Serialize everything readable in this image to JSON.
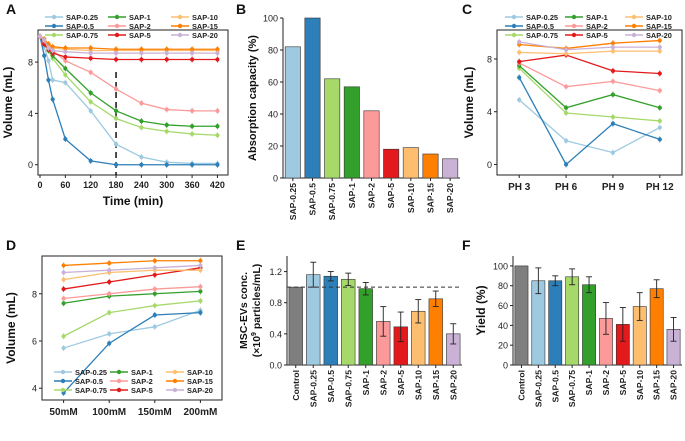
{
  "figure": {
    "series_styles": [
      {
        "name": "SAP-0.25",
        "color": "#9ecae1"
      },
      {
        "name": "SAP-0.5",
        "color": "#2c7fb8"
      },
      {
        "name": "SAP-0.75",
        "color": "#a6d96a"
      },
      {
        "name": "SAP-1",
        "color": "#33a02c"
      },
      {
        "name": "SAP-2",
        "color": "#fb9a99"
      },
      {
        "name": "SAP-5",
        "color": "#e31a1c"
      },
      {
        "name": "SAP-10",
        "color": "#fdbf6f"
      },
      {
        "name": "SAP-15",
        "color": "#ff7f00"
      },
      {
        "name": "SAP-20",
        "color": "#cab2d6"
      }
    ],
    "control_color": "#7f7f7f"
  },
  "chart_data": [
    {
      "panel": "A",
      "type": "line",
      "xlabel": "Time (min)",
      "ylabel": "Volume (mL)",
      "x": [
        0,
        10,
        20,
        30,
        60,
        120,
        180,
        240,
        300,
        360,
        420
      ],
      "xticks": [
        0,
        60,
        120,
        180,
        240,
        300,
        360,
        420
      ],
      "xlim": [
        0,
        445
      ],
      "ylim": [
        -0.8,
        10.5
      ],
      "yticks": [
        0,
        4,
        8
      ],
      "vline": 180,
      "series": [
        {
          "name": "SAP-0.25",
          "values": [
            10,
            9.2,
            8.1,
            6.6,
            6.4,
            4.2,
            1.6,
            0.6,
            0.2,
            0.1,
            0.1
          ]
        },
        {
          "name": "SAP-0.5",
          "values": [
            10,
            8.5,
            6.6,
            5.1,
            2.0,
            0.3,
            0.0,
            0.0,
            0.0,
            0.0,
            0.0
          ]
        },
        {
          "name": "SAP-0.75",
          "values": [
            10,
            9.4,
            8.9,
            8.3,
            7.0,
            4.9,
            3.6,
            2.9,
            2.6,
            2.4,
            2.3
          ]
        },
        {
          "name": "SAP-1",
          "values": [
            10,
            9.4,
            8.9,
            8.5,
            7.5,
            5.6,
            4.2,
            3.4,
            3.1,
            3.0,
            3.0
          ]
        },
        {
          "name": "SAP-2",
          "values": [
            10,
            9.6,
            9.3,
            8.9,
            8.1,
            7.2,
            5.9,
            4.8,
            4.3,
            4.2,
            4.2
          ]
        },
        {
          "name": "SAP-5",
          "values": [
            10,
            9.4,
            9.0,
            8.7,
            8.4,
            8.3,
            8.2,
            8.2,
            8.2,
            8.2,
            8.2
          ]
        },
        {
          "name": "SAP-10",
          "values": [
            10,
            9.7,
            9.3,
            9.1,
            9.0,
            8.9,
            8.9,
            8.9,
            8.9,
            8.9,
            8.9
          ]
        },
        {
          "name": "SAP-15",
          "values": [
            10,
            9.8,
            9.4,
            9.2,
            9.1,
            9.1,
            9.0,
            9.0,
            9.0,
            9.0,
            9.0
          ]
        },
        {
          "name": "SAP-20",
          "values": [
            10,
            9.7,
            9.1,
            8.9,
            8.8,
            8.7,
            8.7,
            8.7,
            8.7,
            8.7,
            8.7
          ]
        }
      ]
    },
    {
      "panel": "B",
      "type": "bar",
      "ylabel": "Absorption capacity (%)",
      "categories": [
        "SAP-0.25",
        "SAP-0.5",
        "SAP-0.75",
        "SAP-1",
        "SAP-2",
        "SAP-5",
        "SAP-10",
        "SAP-15",
        "SAP-20"
      ],
      "values": [
        82,
        100,
        62,
        57,
        42,
        18,
        19,
        15,
        12
      ],
      "ylim": [
        0,
        100
      ],
      "yticks": [
        0,
        20,
        40,
        60,
        80,
        100
      ]
    },
    {
      "panel": "C",
      "type": "line",
      "ylabel": "Volume (mL)",
      "categories": [
        "PH 3",
        "PH 6",
        "PH 9",
        "PH 12"
      ],
      "ylim": [
        -0.8,
        10.2
      ],
      "yticks": [
        0,
        4,
        8
      ],
      "series": [
        {
          "name": "SAP-0.25",
          "values": [
            4.9,
            1.8,
            0.9,
            2.8
          ]
        },
        {
          "name": "SAP-0.5",
          "values": [
            6.6,
            0.0,
            3.1,
            1.9
          ]
        },
        {
          "name": "SAP-0.75",
          "values": [
            7.3,
            3.9,
            3.6,
            3.3
          ]
        },
        {
          "name": "SAP-1",
          "values": [
            7.5,
            4.3,
            5.3,
            4.3
          ]
        },
        {
          "name": "SAP-2",
          "values": [
            7.7,
            5.9,
            6.3,
            5.6
          ]
        },
        {
          "name": "SAP-5",
          "values": [
            7.8,
            8.3,
            7.1,
            6.9
          ]
        },
        {
          "name": "SAP-10",
          "values": [
            8.5,
            8.4,
            8.6,
            8.6
          ]
        },
        {
          "name": "SAP-15",
          "values": [
            9.1,
            8.8,
            9.2,
            9.4
          ]
        },
        {
          "name": "SAP-20",
          "values": [
            9.3,
            8.7,
            8.9,
            8.9
          ]
        }
      ]
    },
    {
      "panel": "D",
      "type": "line",
      "ylabel": "Volume (mL)",
      "categories": [
        "50mM",
        "100mM",
        "150mM",
        "200mM"
      ],
      "ylim": [
        3.5,
        9.6
      ],
      "yticks": [
        4,
        6,
        8
      ],
      "series": [
        {
          "name": "SAP-0.25",
          "values": [
            5.7,
            6.3,
            6.6,
            7.3
          ]
        },
        {
          "name": "SAP-0.5",
          "values": [
            3.8,
            5.9,
            7.1,
            7.2
          ]
        },
        {
          "name": "SAP-0.75",
          "values": [
            6.2,
            7.2,
            7.5,
            7.7
          ]
        },
        {
          "name": "SAP-1",
          "values": [
            7.6,
            7.9,
            8.0,
            8.1
          ]
        },
        {
          "name": "SAP-2",
          "values": [
            7.8,
            8.0,
            8.2,
            8.3
          ]
        },
        {
          "name": "SAP-5",
          "values": [
            8.2,
            8.5,
            8.8,
            9.1
          ]
        },
        {
          "name": "SAP-10",
          "values": [
            8.6,
            8.9,
            9.0,
            9.0
          ]
        },
        {
          "name": "SAP-15",
          "values": [
            9.2,
            9.3,
            9.4,
            9.4
          ]
        },
        {
          "name": "SAP-20",
          "values": [
            8.9,
            9.0,
            9.1,
            9.2
          ]
        }
      ]
    },
    {
      "panel": "E",
      "type": "bar",
      "ylabel_line1": "MSC-EVs conc.",
      "ylabel_pre": "(×10",
      "ylabel_sup": "9",
      "ylabel_post": " particles/mL)",
      "categories": [
        "Control",
        "SAP-0.25",
        "SAP-0.5",
        "SAP-0.75",
        "SAP-1",
        "SAP-2",
        "SAP-5",
        "SAP-10",
        "SAP-15",
        "SAP-20"
      ],
      "values": [
        1.0,
        1.16,
        1.14,
        1.1,
        0.98,
        0.56,
        0.49,
        0.69,
        0.85,
        0.4
      ],
      "errors": [
        0.0,
        0.16,
        0.06,
        0.08,
        0.08,
        0.19,
        0.19,
        0.15,
        0.1,
        0.13
      ],
      "reference_line": 1.0,
      "ylim": [
        0,
        1.4
      ],
      "yticks": [
        0.0,
        0.4,
        0.8,
        1.2
      ],
      "ytick_labels": [
        "0.0",
        "0.4",
        "0.8",
        "1.2"
      ]
    },
    {
      "panel": "F",
      "type": "bar",
      "ylabel": "Yield (%)",
      "categories": [
        "Control",
        "SAP-0.25",
        "SAP-0.5",
        "SAP-0.75",
        "SAP-1",
        "SAP-2",
        "SAP-5",
        "SAP-10",
        "SAP-15",
        "SAP-20"
      ],
      "values": [
        100,
        85,
        85,
        89,
        81,
        47,
        41,
        59,
        77,
        36
      ],
      "errors": [
        0,
        13,
        5,
        8,
        8,
        16,
        17,
        14,
        9,
        12
      ],
      "ylim": [
        0,
        110
      ],
      "yticks": [
        0,
        20,
        40,
        60,
        80,
        100
      ]
    }
  ]
}
